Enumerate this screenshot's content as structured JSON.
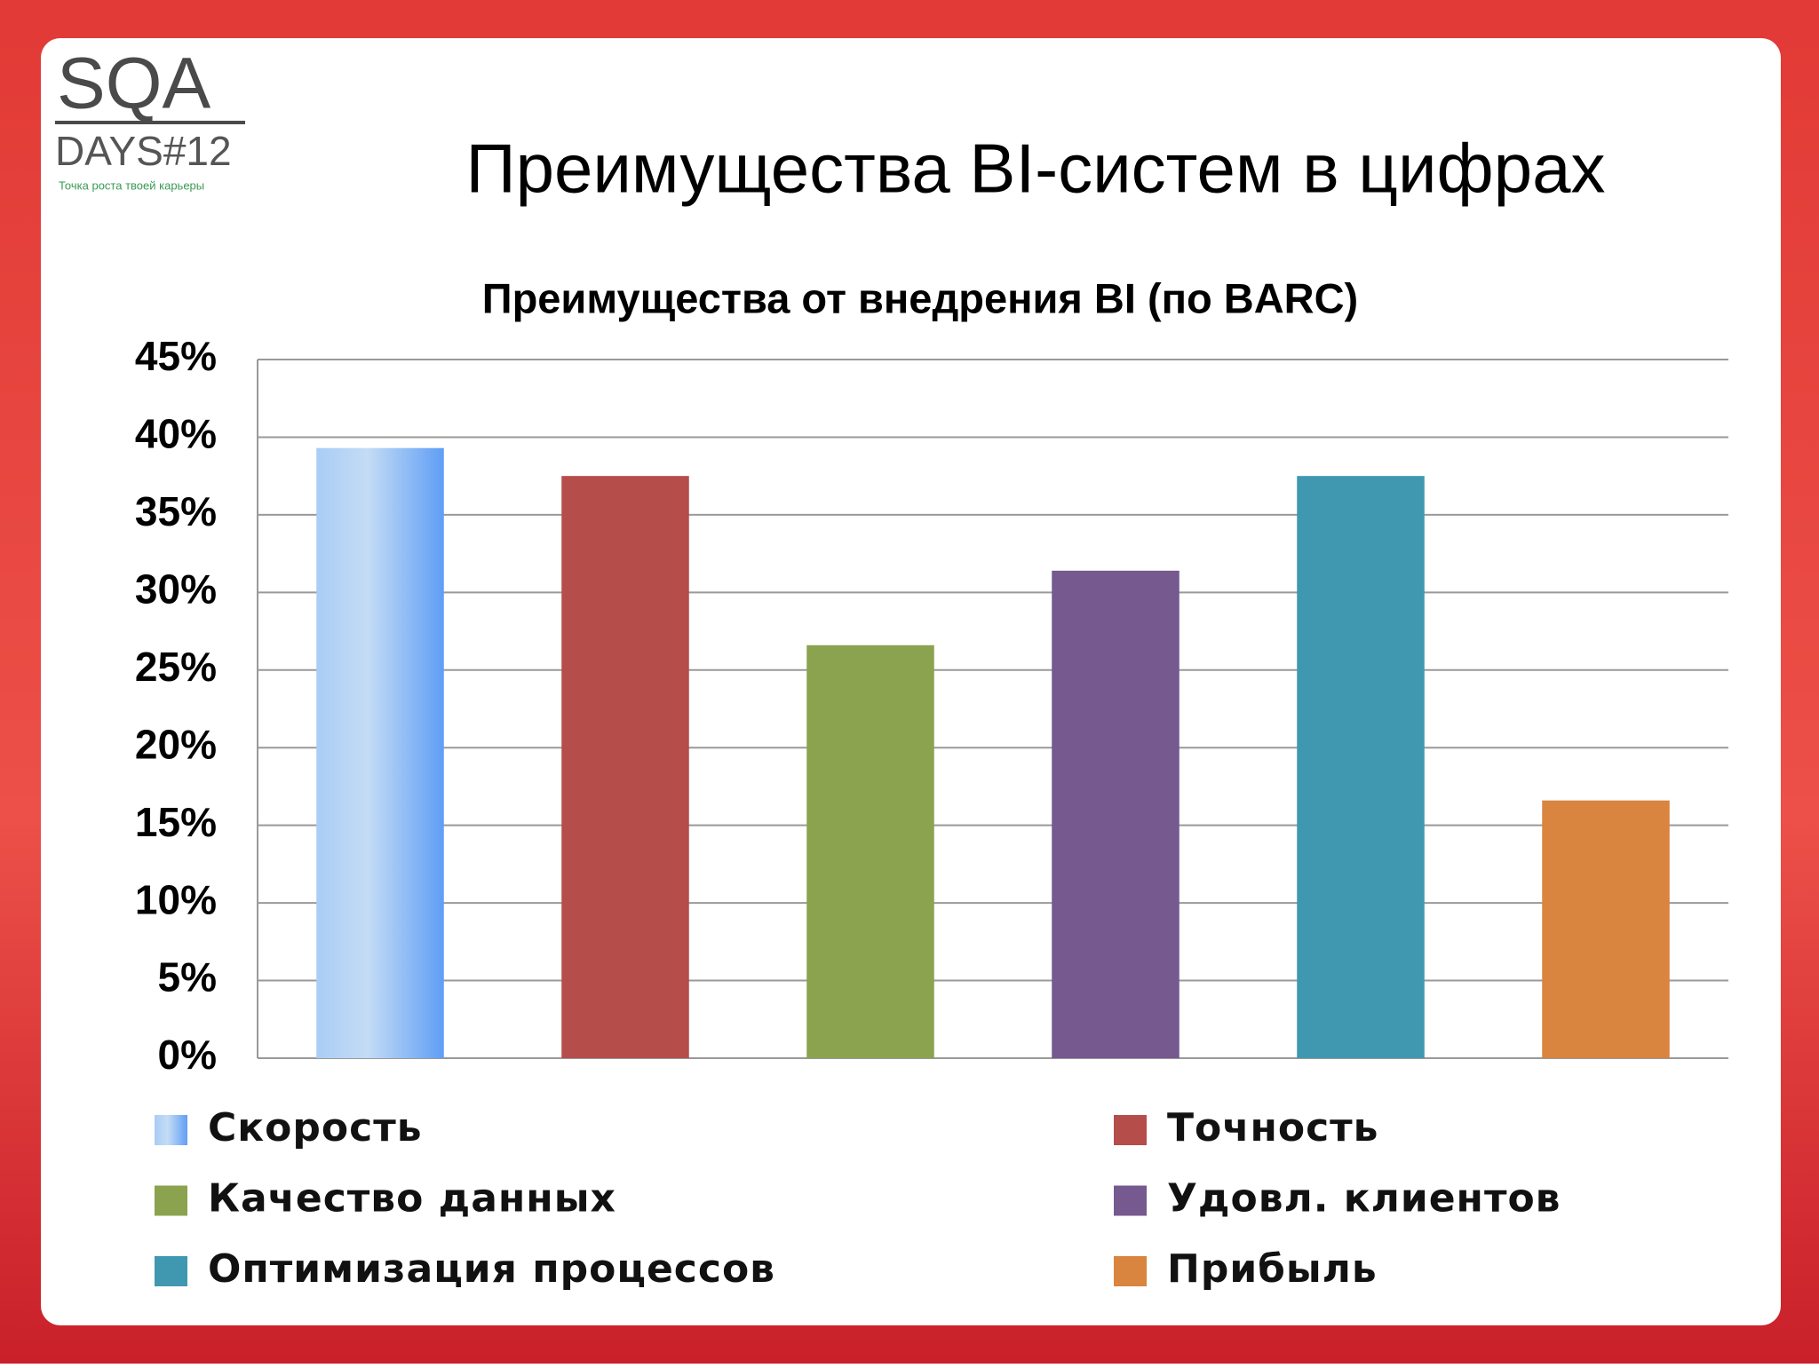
{
  "slide": {
    "title": "Преимущества BI-систем в цифрах",
    "logo": {
      "name": "SQA",
      "edition": "DAYS#12",
      "tagline": "Точка роста твоей карьеры"
    }
  },
  "chart_data": {
    "type": "bar",
    "title": "Преимущества от внедрения BI (по BARC)",
    "categories": [
      "Скорость",
      "Точность",
      "Качество данных",
      "Удовл. клиентов",
      "Оптимизация процессов",
      "Прибыль"
    ],
    "values": [
      39.3,
      37.5,
      26.6,
      31.4,
      37.5,
      16.6
    ],
    "colors": [
      "#6ea6f4",
      "#b54d4b",
      "#8ba34f",
      "#75598f",
      "#3f98b0",
      "#d9843f"
    ],
    "ylim": [
      0,
      45
    ],
    "yticks": [
      {
        "value": 0,
        "label": "0%"
      },
      {
        "value": 5,
        "label": "5%"
      },
      {
        "value": 10,
        "label": "10%"
      },
      {
        "value": 15,
        "label": "15%"
      },
      {
        "value": 20,
        "label": "20%"
      },
      {
        "value": 25,
        "label": "25%"
      },
      {
        "value": 30,
        "label": "30%"
      },
      {
        "value": 35,
        "label": "35%"
      },
      {
        "value": 40,
        "label": "40%"
      },
      {
        "value": 45,
        "label": "45%"
      }
    ],
    "grid": true,
    "legend": "bottom"
  }
}
